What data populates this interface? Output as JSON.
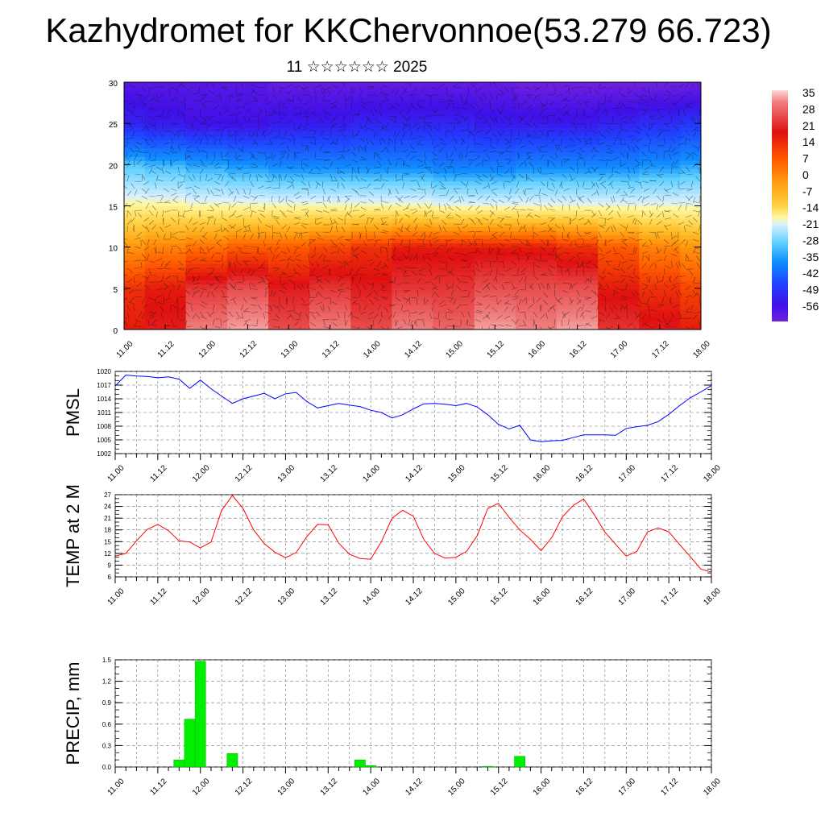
{
  "header": {
    "title": "Kazhydromet for KKChervonnoe(53.279 66.723)",
    "subtitle": "11 ☆☆☆☆☆☆ 2025"
  },
  "x_tick_labels": [
    "11.00",
    "11.12",
    "12.00",
    "12.12",
    "13.00",
    "13.12",
    "14.00",
    "14.12",
    "15.00",
    "15.12",
    "16.00",
    "16.12",
    "17.00",
    "17.12",
    "18.00"
  ],
  "colorbar": {
    "labels": [
      "35",
      "28",
      "21",
      "14",
      "7",
      "0",
      "-7",
      "-14",
      "-21",
      "-28",
      "-35",
      "-42",
      "-49",
      "-56"
    ]
  },
  "chart_data": [
    {
      "type": "heatmap",
      "title": "",
      "xlabel": "",
      "ylabel": "",
      "ylim": [
        0,
        30
      ],
      "y_ticks": [
        0,
        5,
        10,
        15,
        20,
        25,
        30
      ],
      "x": [
        "11.00",
        "11.12",
        "12.00",
        "12.12",
        "13.00",
        "13.12",
        "14.00",
        "14.12",
        "15.00",
        "15.12",
        "16.00",
        "16.12",
        "17.00",
        "17.12",
        "18.00"
      ],
      "levels": [
        0,
        5,
        10,
        15,
        20,
        25,
        30
      ],
      "values": [
        [
          20,
          22,
          30,
          32,
          26,
          30,
          26,
          30,
          28,
          32,
          30,
          32,
          24,
          22,
          20
        ],
        [
          18,
          20,
          24,
          26,
          22,
          24,
          22,
          24,
          24,
          26,
          26,
          26,
          20,
          18,
          16
        ],
        [
          8,
          10,
          12,
          14,
          14,
          16,
          18,
          20,
          20,
          20,
          20,
          18,
          14,
          10,
          8
        ],
        [
          -6,
          -6,
          -7,
          -7,
          -7,
          -7,
          -7,
          -7,
          -8,
          -8,
          -8,
          -8,
          -8,
          -8,
          -8
        ],
        [
          -22,
          -24,
          -26,
          -28,
          -30,
          -30,
          -30,
          -30,
          -32,
          -32,
          -30,
          -30,
          -30,
          -28,
          -26
        ],
        [
          -48,
          -50,
          -52,
          -52,
          -50,
          -50,
          -48,
          -48,
          -48,
          -50,
          -50,
          -50,
          -48,
          -46,
          -44
        ],
        [
          -56,
          -56,
          -56,
          -56,
          -58,
          -58,
          -58,
          -58,
          -58,
          -58,
          -60,
          -60,
          -60,
          -60,
          -60
        ]
      ],
      "colorbar_range": [
        -56,
        35
      ]
    },
    {
      "type": "line",
      "ylabel": "PMSL",
      "ylim": [
        1002,
        1020
      ],
      "y_ticks": [
        1002,
        1005,
        1008,
        1011,
        1014,
        1017,
        1020
      ],
      "x_range": [
        0,
        168
      ],
      "series": [
        {
          "color": "#0000ff",
          "x": [
            0,
            3,
            6,
            9,
            12,
            15,
            18,
            21,
            24,
            27,
            30,
            33,
            36,
            39,
            42,
            45,
            48,
            51,
            54,
            57,
            60,
            63,
            66,
            69,
            72,
            75,
            78,
            81,
            84,
            87,
            90,
            93,
            96,
            99,
            102,
            105,
            108,
            111,
            114,
            117,
            120,
            123,
            126,
            129,
            132,
            135,
            138,
            141,
            144,
            147,
            150,
            153,
            156,
            159,
            162,
            165,
            168
          ],
          "values": [
            1016.8,
            1019.2,
            1019.0,
            1018.9,
            1018.6,
            1018.8,
            1018.3,
            1016.3,
            1018.1,
            1016.2,
            1014.6,
            1013.0,
            1014.0,
            1014.6,
            1015.2,
            1014.0,
            1015.1,
            1015.4,
            1013.4,
            1012.0,
            1012.5,
            1013.0,
            1012.6,
            1012.3,
            1011.5,
            1011.0,
            1009.8,
            1010.5,
            1011.8,
            1012.9,
            1013.0,
            1012.8,
            1012.5,
            1013.0,
            1012.2,
            1010.5,
            1008.4,
            1007.4,
            1008.2,
            1005.0,
            1004.6,
            1004.8,
            1004.9,
            1005.5,
            1006.1,
            1006.1,
            1006.1,
            1006.0,
            1007.5,
            1007.9,
            1008.2,
            1009.0,
            1010.6,
            1012.5,
            1014.2,
            1015.5,
            1016.9
          ]
        }
      ]
    },
    {
      "type": "line",
      "ylabel": "TEMP at 2 M",
      "ylim": [
        6,
        27
      ],
      "y_ticks": [
        6,
        9,
        12,
        15,
        18,
        21,
        24,
        27
      ],
      "x_range": [
        0,
        168
      ],
      "series": [
        {
          "color": "#ff0000",
          "x": [
            0,
            3,
            6,
            9,
            12,
            15,
            18,
            21,
            24,
            27,
            30,
            33,
            36,
            39,
            42,
            45,
            48,
            51,
            54,
            57,
            60,
            63,
            66,
            69,
            72,
            75,
            78,
            81,
            84,
            87,
            90,
            93,
            96,
            99,
            102,
            105,
            108,
            111,
            114,
            117,
            120,
            123,
            126,
            129,
            132,
            135,
            138,
            141,
            144,
            147,
            150,
            153,
            156,
            159,
            162,
            165,
            168
          ],
          "values": [
            11.3,
            12.0,
            15.2,
            18.1,
            19.4,
            17.8,
            15.2,
            14.9,
            13.4,
            14.9,
            23.0,
            26.8,
            23.5,
            18.0,
            14.5,
            12.3,
            10.9,
            12.2,
            16.3,
            19.4,
            19.3,
            14.6,
            11.8,
            10.7,
            10.5,
            15.0,
            21.0,
            23.0,
            21.5,
            15.5,
            12.0,
            10.8,
            11.0,
            12.5,
            16.5,
            23.5,
            24.8,
            21.2,
            18.0,
            15.6,
            12.7,
            16.0,
            21.3,
            24.2,
            25.9,
            21.9,
            17.4,
            14.3,
            11.3,
            12.5,
            17.5,
            18.5,
            17.5,
            14.3,
            11.2,
            8.0,
            7.2
          ]
        }
      ]
    },
    {
      "type": "bar",
      "ylabel": "PRECIP, mm",
      "ylim": [
        0,
        1.5
      ],
      "y_ticks": [
        0.0,
        0.3,
        0.6,
        0.9,
        1.2,
        1.5
      ],
      "y_tick_labels": [
        "0.0",
        "0.3",
        "0.6",
        "0.9",
        "1.2",
        "1.5"
      ],
      "x_range": [
        0,
        168
      ],
      "bar_width_hours": 3,
      "color": "#00ee00",
      "x": [
        18,
        21,
        24,
        33,
        69,
        72,
        105,
        114
      ],
      "values": [
        0.1,
        0.67,
        1.48,
        0.19,
        0.1,
        0.02,
        0.01,
        0.15
      ]
    }
  ]
}
